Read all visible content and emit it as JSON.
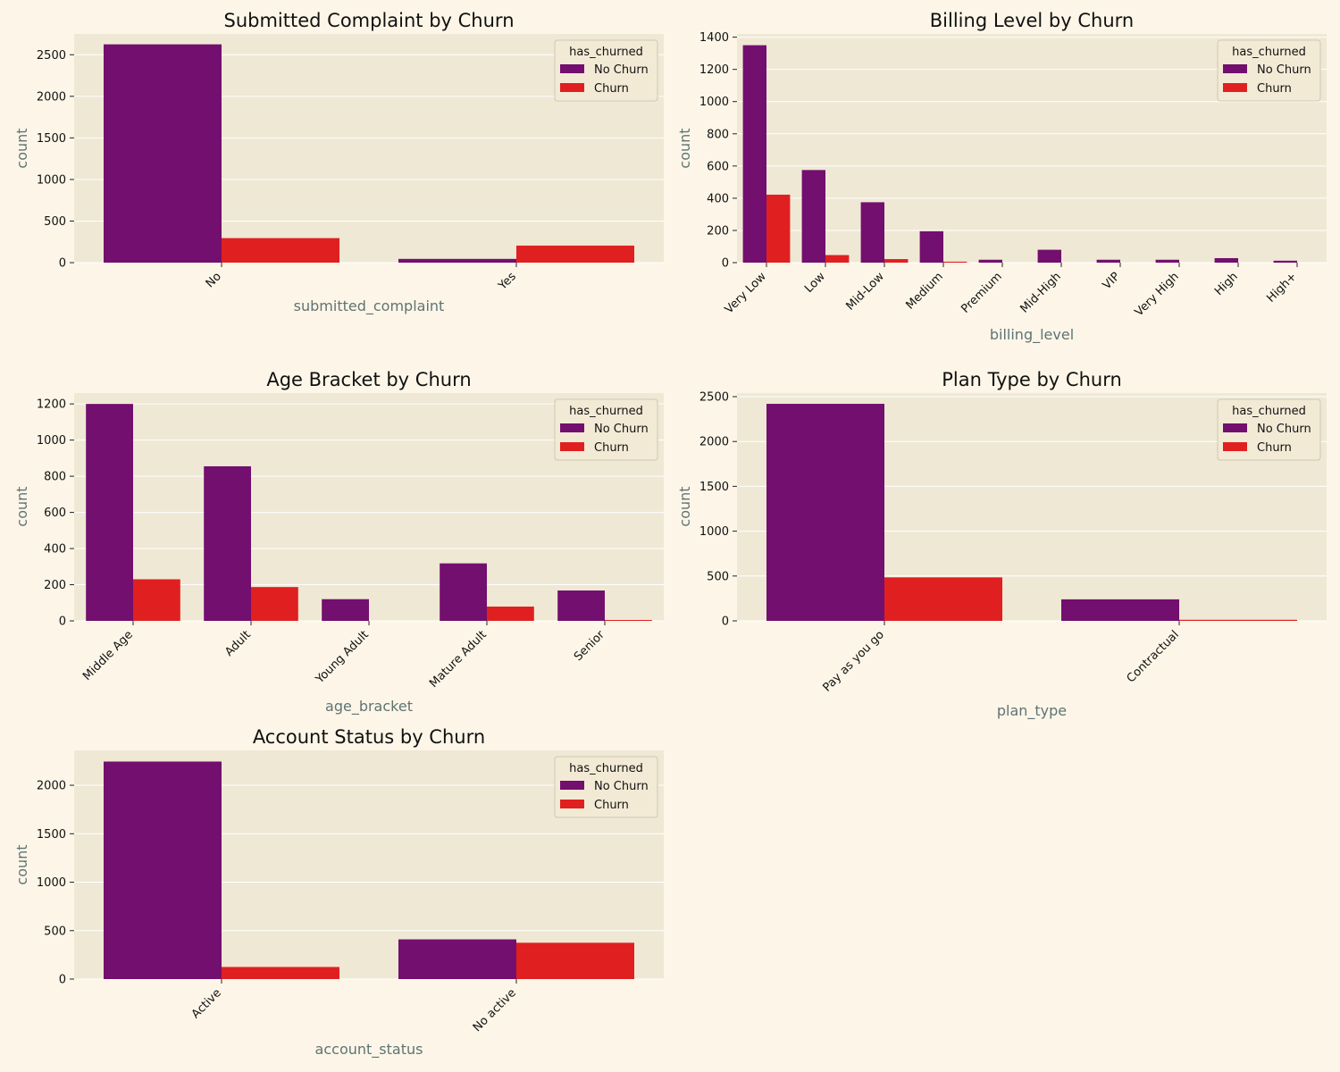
{
  "chart_data": [
    {
      "type": "bar",
      "title": "Submitted Complaint by Churn",
      "xlabel": "submitted_complaint",
      "ylabel": "count",
      "categories": [
        "No",
        "Yes"
      ],
      "ylim": [
        0,
        2750
      ],
      "yticks": [
        0,
        500,
        1000,
        1500,
        2000,
        2500
      ],
      "legend_title": "has_churned",
      "legend_position": "top-right",
      "grid": true,
      "series": [
        {
          "name": "No Churn",
          "color": "#730f6e",
          "values": [
            2625,
            45
          ]
        },
        {
          "name": "Churn",
          "color": "#e02020",
          "values": [
            295,
            205
          ]
        }
      ]
    },
    {
      "type": "bar",
      "title": "Billing Level by Churn",
      "xlabel": "billing_level",
      "ylabel": "count",
      "categories": [
        "Very Low",
        "Low",
        "Mid-Low",
        "Medium",
        "Premium",
        "Mid-High",
        "VIP",
        "Very High",
        "High",
        "High+"
      ],
      "ylim": [
        0,
        1420
      ],
      "yticks": [
        0,
        200,
        400,
        600,
        800,
        1000,
        1200,
        1400
      ],
      "legend_title": "has_churned",
      "legend_position": "top-right",
      "grid": true,
      "series": [
        {
          "name": "No Churn",
          "color": "#730f6e",
          "values": [
            1350,
            575,
            375,
            195,
            18,
            80,
            18,
            18,
            28,
            12
          ]
        },
        {
          "name": "Churn",
          "color": "#e02020",
          "values": [
            422,
            47,
            22,
            6,
            0,
            0,
            0,
            0,
            0,
            0
          ]
        }
      ]
    },
    {
      "type": "bar",
      "title": "Age Bracket by Churn",
      "xlabel": "age_bracket",
      "ylabel": "count",
      "categories": [
        "Middle Age",
        "Adult",
        "Young Adult",
        "Mature Adult",
        "Senior"
      ],
      "ylim": [
        0,
        1260
      ],
      "yticks": [
        0,
        200,
        400,
        600,
        800,
        1000,
        1200
      ],
      "legend_title": "has_churned",
      "legend_position": "top-right",
      "grid": true,
      "series": [
        {
          "name": "No Churn",
          "color": "#730f6e",
          "values": [
            1200,
            855,
            120,
            318,
            168
          ]
        },
        {
          "name": "Churn",
          "color": "#e02020",
          "values": [
            230,
            187,
            0,
            79,
            5
          ]
        }
      ]
    },
    {
      "type": "bar",
      "title": "Plan Type by Churn",
      "xlabel": "plan_type",
      "ylabel": "count",
      "categories": [
        "Pay as you go",
        "Contractual"
      ],
      "ylim": [
        0,
        2540
      ],
      "yticks": [
        0,
        500,
        1000,
        1500,
        2000,
        2500
      ],
      "legend_title": "has_churned",
      "legend_position": "top-right",
      "grid": true,
      "series": [
        {
          "name": "No Churn",
          "color": "#730f6e",
          "values": [
            2420,
            240
          ]
        },
        {
          "name": "Churn",
          "color": "#e02020",
          "values": [
            485,
            12
          ]
        }
      ]
    },
    {
      "type": "bar",
      "title": "Account Status by Churn",
      "xlabel": "account_status",
      "ylabel": "count",
      "categories": [
        "Active",
        "No active"
      ],
      "ylim": [
        0,
        2360
      ],
      "yticks": [
        0,
        500,
        1000,
        1500,
        2000
      ],
      "legend_title": "has_churned",
      "legend_position": "top-right",
      "grid": true,
      "series": [
        {
          "name": "No Churn",
          "color": "#730f6e",
          "values": [
            2245,
            410
          ]
        },
        {
          "name": "Churn",
          "color": "#e02020",
          "values": [
            125,
            375
          ]
        }
      ]
    }
  ]
}
